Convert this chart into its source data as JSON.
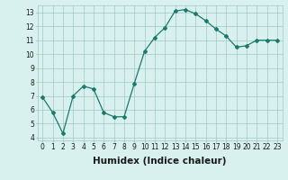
{
  "x": [
    0,
    1,
    2,
    3,
    4,
    5,
    6,
    7,
    8,
    9,
    10,
    11,
    12,
    13,
    14,
    15,
    16,
    17,
    18,
    19,
    20,
    21,
    22,
    23
  ],
  "y": [
    6.9,
    5.8,
    4.3,
    7.0,
    7.7,
    7.5,
    5.8,
    5.5,
    5.5,
    7.9,
    10.2,
    11.2,
    11.9,
    13.1,
    13.2,
    12.9,
    12.4,
    11.8,
    11.3,
    10.5,
    10.6,
    11.0,
    11.0,
    11.0
  ],
  "line_color": "#1a7a6e",
  "marker": "D",
  "marker_size": 2,
  "background_color": "#d8f0ee",
  "grid_color": "#a0c8c4",
  "xlabel": "Humidex (Indice chaleur)",
  "xlim": [
    -0.5,
    23.5
  ],
  "ylim": [
    3.8,
    13.5
  ],
  "yticks": [
    4,
    5,
    6,
    7,
    8,
    9,
    10,
    11,
    12,
    13
  ],
  "xticks": [
    0,
    1,
    2,
    3,
    4,
    5,
    6,
    7,
    8,
    9,
    10,
    11,
    12,
    13,
    14,
    15,
    16,
    17,
    18,
    19,
    20,
    21,
    22,
    23
  ],
  "tick_label_fontsize": 5.5,
  "xlabel_fontsize": 7.5
}
